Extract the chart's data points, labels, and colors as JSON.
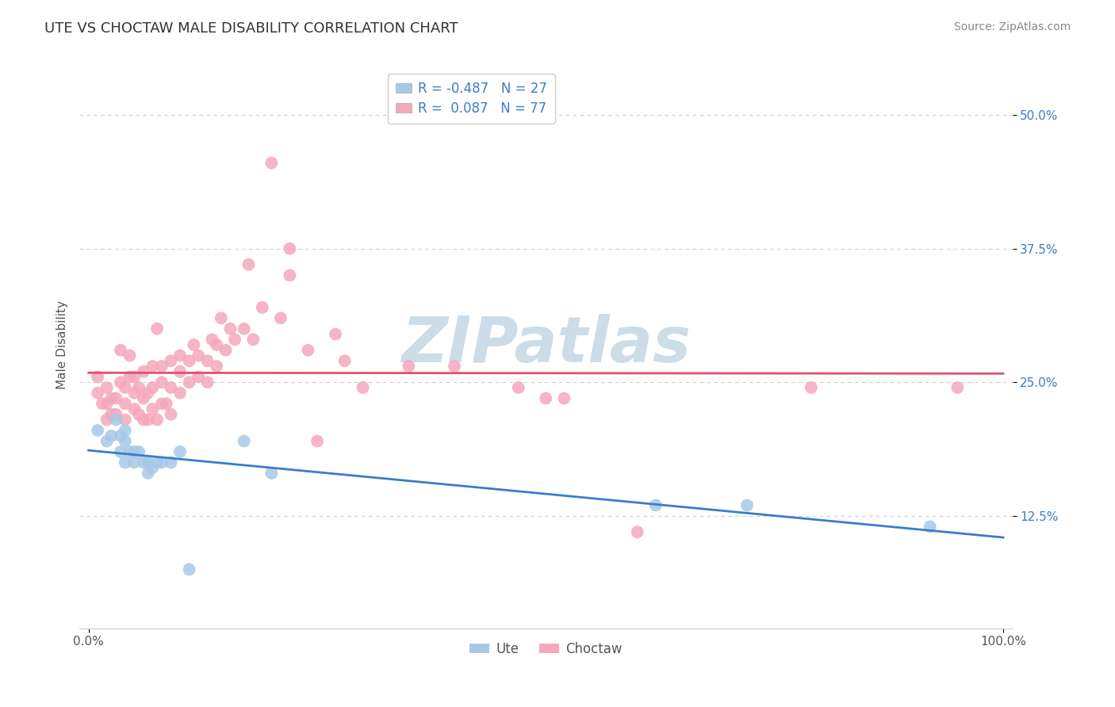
{
  "title": "UTE VS CHOCTAW MALE DISABILITY CORRELATION CHART",
  "source": "Source: ZipAtlas.com",
  "xlabel": "",
  "ylabel": "Male Disability",
  "xlim": [
    -0.01,
    1.01
  ],
  "ylim": [
    0.02,
    0.55
  ],
  "yticks": [
    0.125,
    0.25,
    0.375,
    0.5
  ],
  "yticklabels": [
    "12.5%",
    "25.0%",
    "37.5%",
    "50.0%"
  ],
  "grid_color": "#cccccc",
  "background_color": "#ffffff",
  "ute_color": "#a8c8e8",
  "choctaw_color": "#f4a8bc",
  "ute_line_color": "#3a7dc9",
  "choctaw_line_color": "#e05070",
  "ute_R": -0.487,
  "ute_N": 27,
  "choctaw_R": 0.087,
  "choctaw_N": 77,
  "ute_x": [
    0.01,
    0.02,
    0.025,
    0.03,
    0.035,
    0.035,
    0.04,
    0.04,
    0.045,
    0.04,
    0.05,
    0.05,
    0.055,
    0.06,
    0.065,
    0.065,
    0.07,
    0.075,
    0.08,
    0.09,
    0.1,
    0.11,
    0.17,
    0.2,
    0.62,
    0.72,
    0.92
  ],
  "ute_y": [
    0.205,
    0.195,
    0.2,
    0.215,
    0.2,
    0.185,
    0.195,
    0.175,
    0.185,
    0.205,
    0.185,
    0.175,
    0.185,
    0.175,
    0.175,
    0.165,
    0.17,
    0.175,
    0.175,
    0.175,
    0.185,
    0.075,
    0.195,
    0.165,
    0.135,
    0.135,
    0.115
  ],
  "choctaw_x": [
    0.01,
    0.01,
    0.015,
    0.02,
    0.02,
    0.02,
    0.025,
    0.025,
    0.03,
    0.03,
    0.035,
    0.035,
    0.04,
    0.04,
    0.04,
    0.045,
    0.045,
    0.05,
    0.05,
    0.05,
    0.055,
    0.055,
    0.06,
    0.06,
    0.06,
    0.065,
    0.065,
    0.07,
    0.07,
    0.07,
    0.075,
    0.075,
    0.08,
    0.08,
    0.08,
    0.085,
    0.09,
    0.09,
    0.09,
    0.1,
    0.1,
    0.1,
    0.11,
    0.11,
    0.115,
    0.12,
    0.12,
    0.13,
    0.13,
    0.135,
    0.14,
    0.14,
    0.145,
    0.15,
    0.155,
    0.16,
    0.17,
    0.175,
    0.18,
    0.19,
    0.2,
    0.21,
    0.22,
    0.22,
    0.24,
    0.25,
    0.27,
    0.28,
    0.3,
    0.35,
    0.4,
    0.47,
    0.5,
    0.52,
    0.6,
    0.79,
    0.95
  ],
  "choctaw_y": [
    0.24,
    0.255,
    0.23,
    0.215,
    0.23,
    0.245,
    0.22,
    0.235,
    0.22,
    0.235,
    0.25,
    0.28,
    0.215,
    0.23,
    0.245,
    0.255,
    0.275,
    0.225,
    0.24,
    0.255,
    0.22,
    0.245,
    0.215,
    0.235,
    0.26,
    0.215,
    0.24,
    0.225,
    0.245,
    0.265,
    0.3,
    0.215,
    0.23,
    0.25,
    0.265,
    0.23,
    0.245,
    0.27,
    0.22,
    0.24,
    0.26,
    0.275,
    0.25,
    0.27,
    0.285,
    0.255,
    0.275,
    0.25,
    0.27,
    0.29,
    0.265,
    0.285,
    0.31,
    0.28,
    0.3,
    0.29,
    0.3,
    0.36,
    0.29,
    0.32,
    0.455,
    0.31,
    0.35,
    0.375,
    0.28,
    0.195,
    0.295,
    0.27,
    0.245,
    0.265,
    0.265,
    0.245,
    0.235,
    0.235,
    0.11,
    0.245,
    0.245
  ],
  "watermark_text": "ZIPatlas",
  "watermark_color": "#ccdde8",
  "title_fontsize": 13,
  "axis_label_fontsize": 11,
  "tick_fontsize": 11,
  "legend_fontsize": 12,
  "source_fontsize": 10,
  "marker_size": 130
}
